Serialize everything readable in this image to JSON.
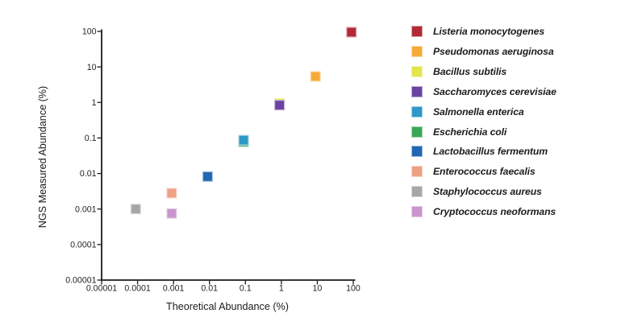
{
  "chart_data": {
    "type": "scatter",
    "title": "",
    "xlabel": "Theoretical Abundance (%)",
    "ylabel": "NGS Measured Abundance (%)",
    "x_scale": "log",
    "y_scale": "log",
    "xlim": [
      1e-05,
      100
    ],
    "ylim": [
      1e-05,
      100
    ],
    "x_tick_labels": [
      "0.00001",
      "0.0001",
      "0.001",
      "0.01",
      "0.1",
      "1",
      "10",
      "100"
    ],
    "y_tick_labels": [
      "0.00001",
      "0.0001",
      "0.001",
      "0.01",
      "0.1",
      "1",
      "10",
      "100"
    ],
    "grid": false,
    "legend_position": "right-outside",
    "marker_shape": "square",
    "axis_color": "#1a1a1a",
    "series": [
      {
        "name": "Listeria monocytogenes",
        "color": "#b22a35",
        "theoretical": 89.1,
        "measured": 95
      },
      {
        "name": "Pseudomonas aeruginosa",
        "color": "#f5ab38",
        "theoretical": 8.9,
        "measured": 5.4
      },
      {
        "name": "Bacillus subtilis",
        "color": "#e4e44b",
        "theoretical": 0.89,
        "measured": 0.95,
        "behind": true
      },
      {
        "name": "Saccharomyces cerevisiae",
        "color": "#6b43a0",
        "theoretical": 0.89,
        "measured": 0.84
      },
      {
        "name": "Salmonella enterica",
        "color": "#2e98c7",
        "theoretical": 0.089,
        "measured": 0.087
      },
      {
        "name": "Escherichia coli",
        "color": "#3aa757",
        "theoretical": 0.089,
        "measured": 0.078,
        "behind": true
      },
      {
        "name": "Lactobacillus fermentum",
        "color": "#2268b2",
        "theoretical": 0.0089,
        "measured": 0.0082
      },
      {
        "name": "Enterococcus faecalis",
        "color": "#eda183",
        "theoretical": 0.00089,
        "measured": 0.0028
      },
      {
        "name": "Staphylococcus aureus",
        "color": "#a7a7a9",
        "theoretical": 8.9e-05,
        "measured": 0.001
      },
      {
        "name": "Cryptococcus neoformans",
        "color": "#c995cc",
        "theoretical": 0.00089,
        "measured": 0.00075
      }
    ]
  }
}
